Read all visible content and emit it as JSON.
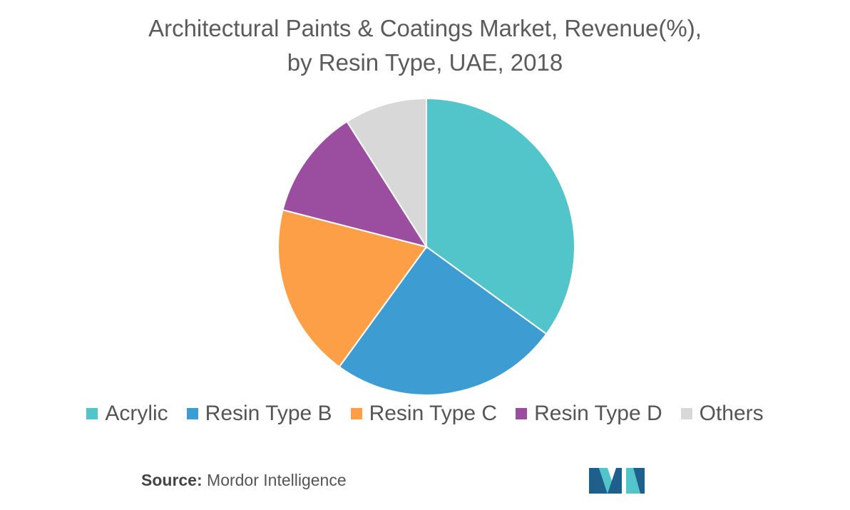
{
  "chart_data": {
    "type": "pie",
    "title_lines": [
      "Architectural Paints & Coatings Market, Revenue(%),",
      "by Resin Type, UAE, 2018"
    ],
    "slices": [
      {
        "label": "Acrylic",
        "value": 35,
        "color": "#52c5ca"
      },
      {
        "label": "Resin Type B",
        "value": 25,
        "color": "#3d9dd3"
      },
      {
        "label": "Resin Type C",
        "value": 19,
        "color": "#fd9f47"
      },
      {
        "label": "Resin Type D",
        "value": 12,
        "color": "#9b4ea0"
      },
      {
        "label": "Others",
        "value": 9,
        "color": "#d8d8d8"
      }
    ],
    "legend_position": "bottom",
    "start_angle": "12 o'clock",
    "direction": "clockwise"
  },
  "source": {
    "label": "Source:",
    "text": "Mordor Intelligence"
  },
  "logo": {
    "icon": "mordor-intelligence-logo",
    "colors": [
      "#1f5f8b",
      "#52c5ca"
    ]
  }
}
